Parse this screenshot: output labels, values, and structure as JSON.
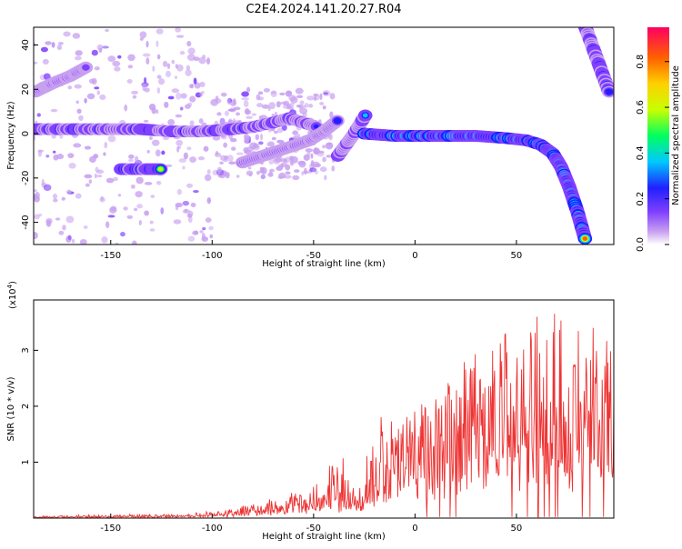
{
  "title": "C2E4.2024.141.20.27.R04",
  "colorbar": {
    "label": "Normalized spectral amplitude",
    "ticks": [
      "0.0",
      "0.2",
      "0.4",
      "0.6",
      "0.8"
    ],
    "tick_values": [
      0.0,
      0.2,
      0.4,
      0.6,
      0.8
    ],
    "range": [
      0,
      0.95
    ]
  },
  "chart_data": [
    {
      "type": "heatmap",
      "xlabel": "Height of straight line (km)",
      "ylabel": "Frequency (Hz)",
      "xlim": [
        -188,
        98
      ],
      "ylim": [
        -50,
        48
      ],
      "xticks": [
        -150,
        -100,
        -50,
        0,
        50
      ],
      "xtick_labels": [
        "-150",
        "-100",
        "-50",
        "0",
        "50"
      ],
      "yticks": [
        -40,
        -20,
        0,
        20,
        40
      ],
      "ytick_labels": [
        "-40",
        "-20",
        "0",
        "20",
        "40"
      ],
      "colormap": [
        "#ffffff",
        "#c8a0f0",
        "#8040ff",
        "#2020ff",
        "#00c8ff",
        "#00ff60",
        "#c8ff00",
        "#ffd000",
        "#ff6000",
        "#ff0060"
      ],
      "traces": [
        {
          "points": [
            [
              -187,
              2
            ],
            [
              -170,
              2
            ],
            [
              -150,
              2
            ],
            [
              -135,
              2
            ],
            [
              -120,
              1
            ],
            [
              -105,
              1
            ],
            [
              -90,
              2
            ],
            [
              -80,
              3
            ],
            [
              -70,
              5
            ],
            [
              -62,
              7
            ],
            [
              -55,
              5
            ],
            [
              -48,
              3
            ]
          ],
          "amp": 0.45
        },
        {
          "points": [
            [
              -145,
              -16
            ],
            [
              -135,
              -16
            ],
            [
              -125,
              -16
            ]
          ],
          "amp": 0.6
        },
        {
          "points": [
            [
              -187,
              19
            ],
            [
              -178,
              23
            ],
            [
              -170,
              26
            ],
            [
              -162,
              30
            ]
          ],
          "amp": 0.3
        },
        {
          "points": [
            [
              -85,
              -13
            ],
            [
              -75,
              -10
            ],
            [
              -65,
              -7
            ],
            [
              -52,
              -3
            ],
            [
              -45,
              1
            ],
            [
              -38,
              6
            ]
          ],
          "amp": 0.35
        },
        {
          "points": [
            [
              -38,
              -10
            ],
            [
              -34,
              -5
            ],
            [
              -30,
              0
            ],
            [
              -26,
              6
            ],
            [
              -24,
              9
            ]
          ],
          "amp": 0.4
        },
        {
          "points": [
            [
              -25,
              0
            ],
            [
              -10,
              -1
            ],
            [
              10,
              -1
            ],
            [
              30,
              -1
            ],
            [
              45,
              -2
            ],
            [
              55,
              -3
            ],
            [
              62,
              -5
            ],
            [
              68,
              -9
            ],
            [
              72,
              -15
            ],
            [
              76,
              -24
            ],
            [
              80,
              -35
            ],
            [
              84,
              -48
            ]
          ],
          "amp": 0.75
        },
        {
          "points": [
            [
              84,
              48
            ],
            [
              88,
              38
            ],
            [
              92,
              28
            ],
            [
              96,
              18
            ]
          ],
          "amp": 0.45
        }
      ],
      "speckle_regions": [
        {
          "x": [
            -188,
            -100
          ],
          "y": [
            -50,
            48
          ],
          "amp": 0.08
        },
        {
          "x": [
            -100,
            -40
          ],
          "y": [
            -20,
            20
          ],
          "amp": 0.06
        }
      ]
    },
    {
      "type": "line",
      "xlabel": "Height of straight line (km)",
      "ylabel": "SNR (10 * v/v)",
      "multiplier_label": "(x10",
      "multiplier_exponent": "4",
      "xlim": [
        -188,
        98
      ],
      "ylim": [
        0,
        3.9
      ],
      "xticks": [
        -150,
        -100,
        -50,
        0,
        50
      ],
      "xtick_labels": [
        "-150",
        "-100",
        "-50",
        "0",
        "50"
      ],
      "yticks": [
        1,
        2,
        3
      ],
      "ytick_labels": [
        "1",
        "2",
        "3"
      ],
      "color": "#ee3333",
      "envelope": [
        {
          "x": -188,
          "base": 0.01,
          "amp": 0.03
        },
        {
          "x": -110,
          "base": 0.02,
          "amp": 0.06
        },
        {
          "x": -80,
          "base": 0.06,
          "amp": 0.18
        },
        {
          "x": -50,
          "base": 0.15,
          "amp": 0.45
        },
        {
          "x": -35,
          "base": 0.25,
          "amp": 1.0
        },
        {
          "x": -28,
          "base": 0.1,
          "amp": 0.3
        },
        {
          "x": -22,
          "base": 0.3,
          "amp": 1.2
        },
        {
          "x": 0,
          "base": 0.5,
          "amp": 1.6
        },
        {
          "x": 30,
          "base": 0.9,
          "amp": 2.2
        },
        {
          "x": 60,
          "base": 1.0,
          "amp": 2.7
        },
        {
          "x": 98,
          "base": 0.9,
          "amp": 2.4
        }
      ]
    }
  ]
}
